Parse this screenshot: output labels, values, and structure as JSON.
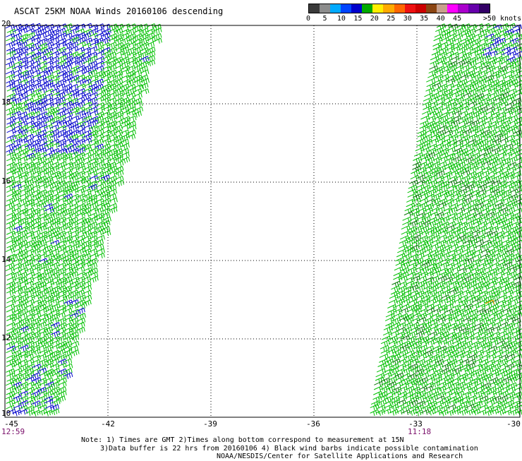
{
  "title": "ASCAT 25KM NOAA Winds 20160106 descending",
  "colorbar": {
    "segments": [
      "#3a3a3a",
      "#8c8c8c",
      "#00aaff",
      "#0044ff",
      "#0000cc",
      "#00aa00",
      "#ffee00",
      "#ffaa00",
      "#ff6600",
      "#ee1111",
      "#cc0000",
      "#8b4513",
      "#c8a08c",
      "#ff00ff",
      "#aa00cc",
      "#6600aa",
      "#330066"
    ],
    "labels": [
      "0",
      "5",
      "10",
      "15",
      "20",
      "25",
      "30",
      "35",
      "40",
      "45",
      ">50 knots"
    ],
    "label_values": [
      0,
      5,
      10,
      15,
      20,
      25,
      30,
      35,
      40,
      45,
      50
    ]
  },
  "map": {
    "lon_range": [
      -45,
      -30
    ],
    "lat_range": [
      10,
      20
    ],
    "lon_ticks": [
      "-45",
      "-42",
      "-39",
      "-36",
      "-33",
      "-30"
    ],
    "lat_ticks": [
      "20",
      "18",
      "16",
      "14",
      "12",
      "10"
    ],
    "grid": "dotted",
    "barb_colors": {
      "low": "#00c000",
      "high": "#0000cc",
      "flag": "#ff9900"
    }
  },
  "pass_times": {
    "left": "12:59",
    "right": "11:18"
  },
  "notes": [
    "Note: 1) Times are GMT 2)Times along bottom correspond to measurement at 15N",
    "3)Data buffer is 22 hrs from 20160106 4) Black wind barbs indicate possible contamination",
    "NOAA/NESDIS/Center for Satellite Applications and Research"
  ]
}
